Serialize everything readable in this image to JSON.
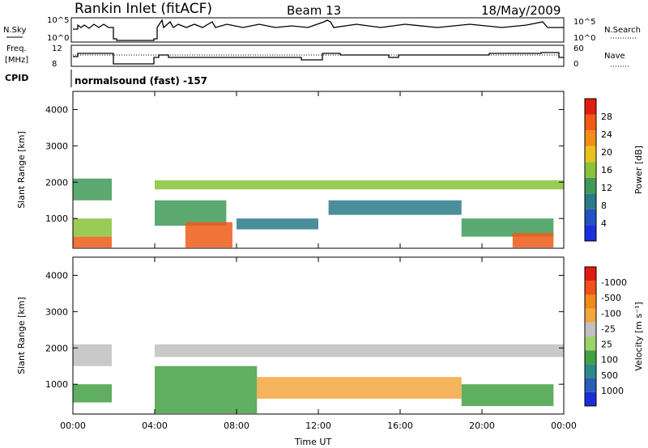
{
  "header": {
    "station": "Rankin Inlet (fitACF)",
    "beam": "Beam 13",
    "date": "18/May/2009"
  },
  "status_panels": {
    "nsky_label": "N.Sky",
    "nsearch_label": "N.Search",
    "freq_label_1": "Freq.",
    "freq_label_2": "[MHz]",
    "nave_label": "Nave",
    "cpid_label": "CPID",
    "cpid_value": "normalsound (fast) -157",
    "left_ticks_top": [
      "10^5",
      "10^0"
    ],
    "right_ticks_top": [
      "10^5",
      "10^0"
    ],
    "left_ticks_freq": [
      "12",
      "8"
    ],
    "right_ticks_nave": [
      "60",
      "0"
    ]
  },
  "chart_data": [
    {
      "type": "heatmap",
      "title": "",
      "xlabel": "",
      "ylabel": "Slant Range [km]",
      "x_ticks": [
        "00:00",
        "04:00",
        "08:00",
        "12:00",
        "16:00",
        "20:00",
        "00:00"
      ],
      "y_ticks": [
        1000,
        2000,
        3000,
        4000
      ],
      "ylim": [
        180,
        4500
      ],
      "colorbar": {
        "label": "Power [dB]",
        "ticks": [
          4,
          8,
          12,
          16,
          20,
          24,
          28
        ],
        "colors": [
          "#1c2fe0",
          "#2452c0",
          "#2a7a8a",
          "#3f9a58",
          "#8ac23a",
          "#e8c21e",
          "#f28c1a",
          "#f05a16",
          "#e01e10"
        ]
      },
      "bands": [
        {
          "t_start": 0.0,
          "t_end": 1.9,
          "range_start": 1500,
          "range_end": 2100,
          "level": 12
        },
        {
          "t_start": 0.0,
          "t_end": 1.9,
          "range_start": 500,
          "range_end": 1000,
          "level": 16
        },
        {
          "t_start": 0.0,
          "t_end": 1.9,
          "range_start": 200,
          "range_end": 500,
          "level": 28
        },
        {
          "t_start": 4.0,
          "t_end": 24.0,
          "range_start": 1800,
          "range_end": 2050,
          "level": 16
        },
        {
          "t_start": 4.0,
          "t_end": 7.5,
          "range_start": 800,
          "range_end": 1500,
          "level": 12
        },
        {
          "t_start": 5.5,
          "t_end": 7.8,
          "range_start": 200,
          "range_end": 900,
          "level": 28
        },
        {
          "t_start": 8.0,
          "t_end": 12.0,
          "range_start": 700,
          "range_end": 1000,
          "level": 8
        },
        {
          "t_start": 12.5,
          "t_end": 19.0,
          "range_start": 1100,
          "range_end": 1500,
          "level": 8
        },
        {
          "t_start": 19.0,
          "t_end": 23.5,
          "range_start": 500,
          "range_end": 1000,
          "level": 12
        },
        {
          "t_start": 21.5,
          "t_end": 23.5,
          "range_start": 200,
          "range_end": 600,
          "level": 28
        }
      ]
    },
    {
      "type": "heatmap",
      "title": "",
      "xlabel": "Time UT",
      "ylabel": "Slant Range [km]",
      "x_ticks": [
        "00:00",
        "04:00",
        "08:00",
        "12:00",
        "16:00",
        "20:00",
        "00:00"
      ],
      "y_ticks": [
        1000,
        2000,
        3000,
        4000
      ],
      "ylim": [
        180,
        4500
      ],
      "colorbar": {
        "label": "Velocity [m s⁻¹]",
        "ticks": [
          "1000",
          "500",
          "100",
          "25",
          "-25",
          "-100",
          "-500",
          "-1000"
        ],
        "colors": [
          "#1a2fd8",
          "#2a5cb8",
          "#2d8a8a",
          "#44a044",
          "#9fd36a",
          "#c0c0c0",
          "#f2a640",
          "#f08a18",
          "#f0501a",
          "#e01c10"
        ]
      },
      "bands": [
        {
          "t_start": 0.0,
          "t_end": 1.9,
          "range_start": 1500,
          "range_end": 2100,
          "level": "-25"
        },
        {
          "t_start": 0.0,
          "t_end": 1.9,
          "range_start": 500,
          "range_end": 1000,
          "level": "100"
        },
        {
          "t_start": 4.0,
          "t_end": 24.0,
          "range_start": 1750,
          "range_end": 2100,
          "level": "-25"
        },
        {
          "t_start": 4.0,
          "t_end": 9.0,
          "range_start": 200,
          "range_end": 1500,
          "level": "100"
        },
        {
          "t_start": 9.0,
          "t_end": 19.0,
          "range_start": 600,
          "range_end": 1200,
          "level": "-100"
        },
        {
          "t_start": 19.0,
          "t_end": 23.5,
          "range_start": 400,
          "range_end": 1000,
          "level": "100"
        }
      ]
    }
  ]
}
